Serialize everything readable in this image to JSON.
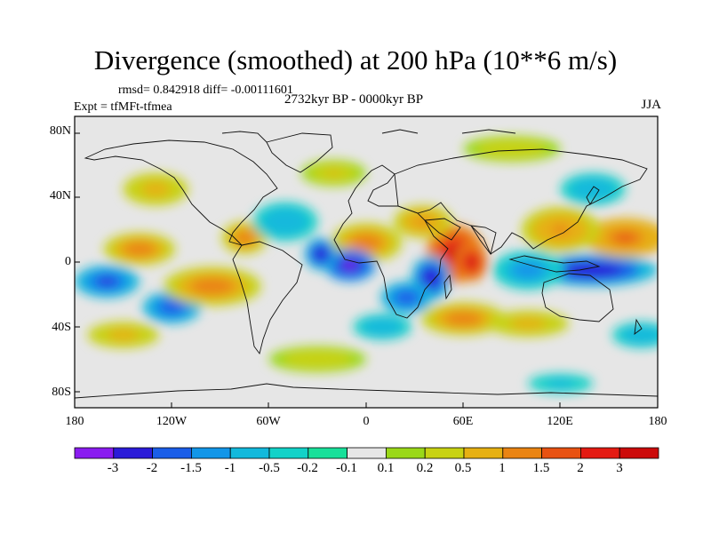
{
  "title": "Divergence (smoothed) at 200 hPa (10**6 m/s)",
  "stats": "rmsd= 0.842918  diff= -0.00111601",
  "experiment": "Expt = tfMFt-tfmea",
  "period": "2732kyr BP - 0000kyr BP",
  "season": "JJA",
  "lat_ticks": [
    "80N",
    "40N",
    "0",
    "40S",
    "80S"
  ],
  "lon_ticks": [
    "180",
    "120W",
    "60W",
    "0",
    "60E",
    "120E",
    "180"
  ],
  "colorbar": {
    "labels": [
      "-3",
      "-2",
      "-1.5",
      "-1",
      "-0.5",
      "-0.2",
      "-0.1",
      "0.1",
      "0.2",
      "0.5",
      "1",
      "1.5",
      "2",
      "3"
    ],
    "colors": [
      "#8a1cf0",
      "#2b1bd8",
      "#1a5ee8",
      "#1296e8",
      "#12b9dc",
      "#12d2c8",
      "#18e09a",
      "#e6e6e6",
      "#9ad818",
      "#c8d212",
      "#e6b012",
      "#ea8412",
      "#e85212",
      "#e41a12",
      "#cc0a0a"
    ]
  },
  "chart_data": {
    "type": "heatmap",
    "variable": "Divergence (smoothed) at 200 hPa",
    "units": "10**6 m/s",
    "xlim": [
      -180,
      180
    ],
    "ylim": [
      -90,
      90
    ],
    "contour_levels": [
      -3,
      -2,
      -1.5,
      -1,
      -0.5,
      -0.2,
      -0.1,
      0.1,
      0.2,
      0.5,
      1,
      1.5,
      2,
      3
    ],
    "features": [
      {
        "lon": 55,
        "lat": 5,
        "value": 3.2,
        "rx": 18,
        "ry": 18
      },
      {
        "lon": 65,
        "lat": 0,
        "value": 3.0,
        "rx": 10,
        "ry": 12
      },
      {
        "lon": 0,
        "lat": 12,
        "value": 1.4,
        "rx": 22,
        "ry": 12
      },
      {
        "lon": -10,
        "lat": -2,
        "value": -3.2,
        "rx": 16,
        "ry": 10
      },
      {
        "lon": -28,
        "lat": 5,
        "value": -2.6,
        "rx": 10,
        "ry": 10
      },
      {
        "lon": 40,
        "lat": -10,
        "value": -2.8,
        "rx": 12,
        "ry": 14
      },
      {
        "lon": 25,
        "lat": -22,
        "value": -2.0,
        "rx": 16,
        "ry": 10
      },
      {
        "lon": 140,
        "lat": -5,
        "value": -2.6,
        "rx": 40,
        "ry": 10
      },
      {
        "lon": 100,
        "lat": -5,
        "value": -1.3,
        "rx": 22,
        "ry": 12
      },
      {
        "lon": 160,
        "lat": 15,
        "value": 1.5,
        "rx": 26,
        "ry": 12
      },
      {
        "lon": 120,
        "lat": 20,
        "value": 1.1,
        "rx": 24,
        "ry": 14
      },
      {
        "lon": -160,
        "lat": -12,
        "value": -2.3,
        "rx": 20,
        "ry": 10
      },
      {
        "lon": -120,
        "lat": -28,
        "value": -2.0,
        "rx": 18,
        "ry": 10
      },
      {
        "lon": -140,
        "lat": 8,
        "value": 1.4,
        "rx": 22,
        "ry": 10
      },
      {
        "lon": -95,
        "lat": -15,
        "value": 1.3,
        "rx": 30,
        "ry": 12
      },
      {
        "lon": -75,
        "lat": 15,
        "value": 1.2,
        "rx": 14,
        "ry": 10
      },
      {
        "lon": -50,
        "lat": 25,
        "value": -1.0,
        "rx": 20,
        "ry": 12
      },
      {
        "lon": 35,
        "lat": 25,
        "value": 1.0,
        "rx": 18,
        "ry": 10
      },
      {
        "lon": 60,
        "lat": -35,
        "value": 1.2,
        "rx": 26,
        "ry": 10
      },
      {
        "lon": 100,
        "lat": -38,
        "value": 0.8,
        "rx": 25,
        "ry": 8
      },
      {
        "lon": -150,
        "lat": -45,
        "value": 0.8,
        "rx": 22,
        "ry": 8
      },
      {
        "lon": 10,
        "lat": -40,
        "value": -1.0,
        "rx": 18,
        "ry": 8
      },
      {
        "lon": 170,
        "lat": -45,
        "value": -0.9,
        "rx": 18,
        "ry": 8
      },
      {
        "lon": 140,
        "lat": 45,
        "value": -1.0,
        "rx": 20,
        "ry": 10
      },
      {
        "lon": -130,
        "lat": 45,
        "value": 0.6,
        "rx": 20,
        "ry": 10
      },
      {
        "lon": -20,
        "lat": 55,
        "value": 0.5,
        "rx": 20,
        "ry": 8
      },
      {
        "lon": 90,
        "lat": 70,
        "value": 0.4,
        "rx": 30,
        "ry": 8
      },
      {
        "lon": -30,
        "lat": -60,
        "value": 0.4,
        "rx": 30,
        "ry": 8
      },
      {
        "lon": 120,
        "lat": -75,
        "value": -0.6,
        "rx": 20,
        "ry": 6
      }
    ]
  }
}
